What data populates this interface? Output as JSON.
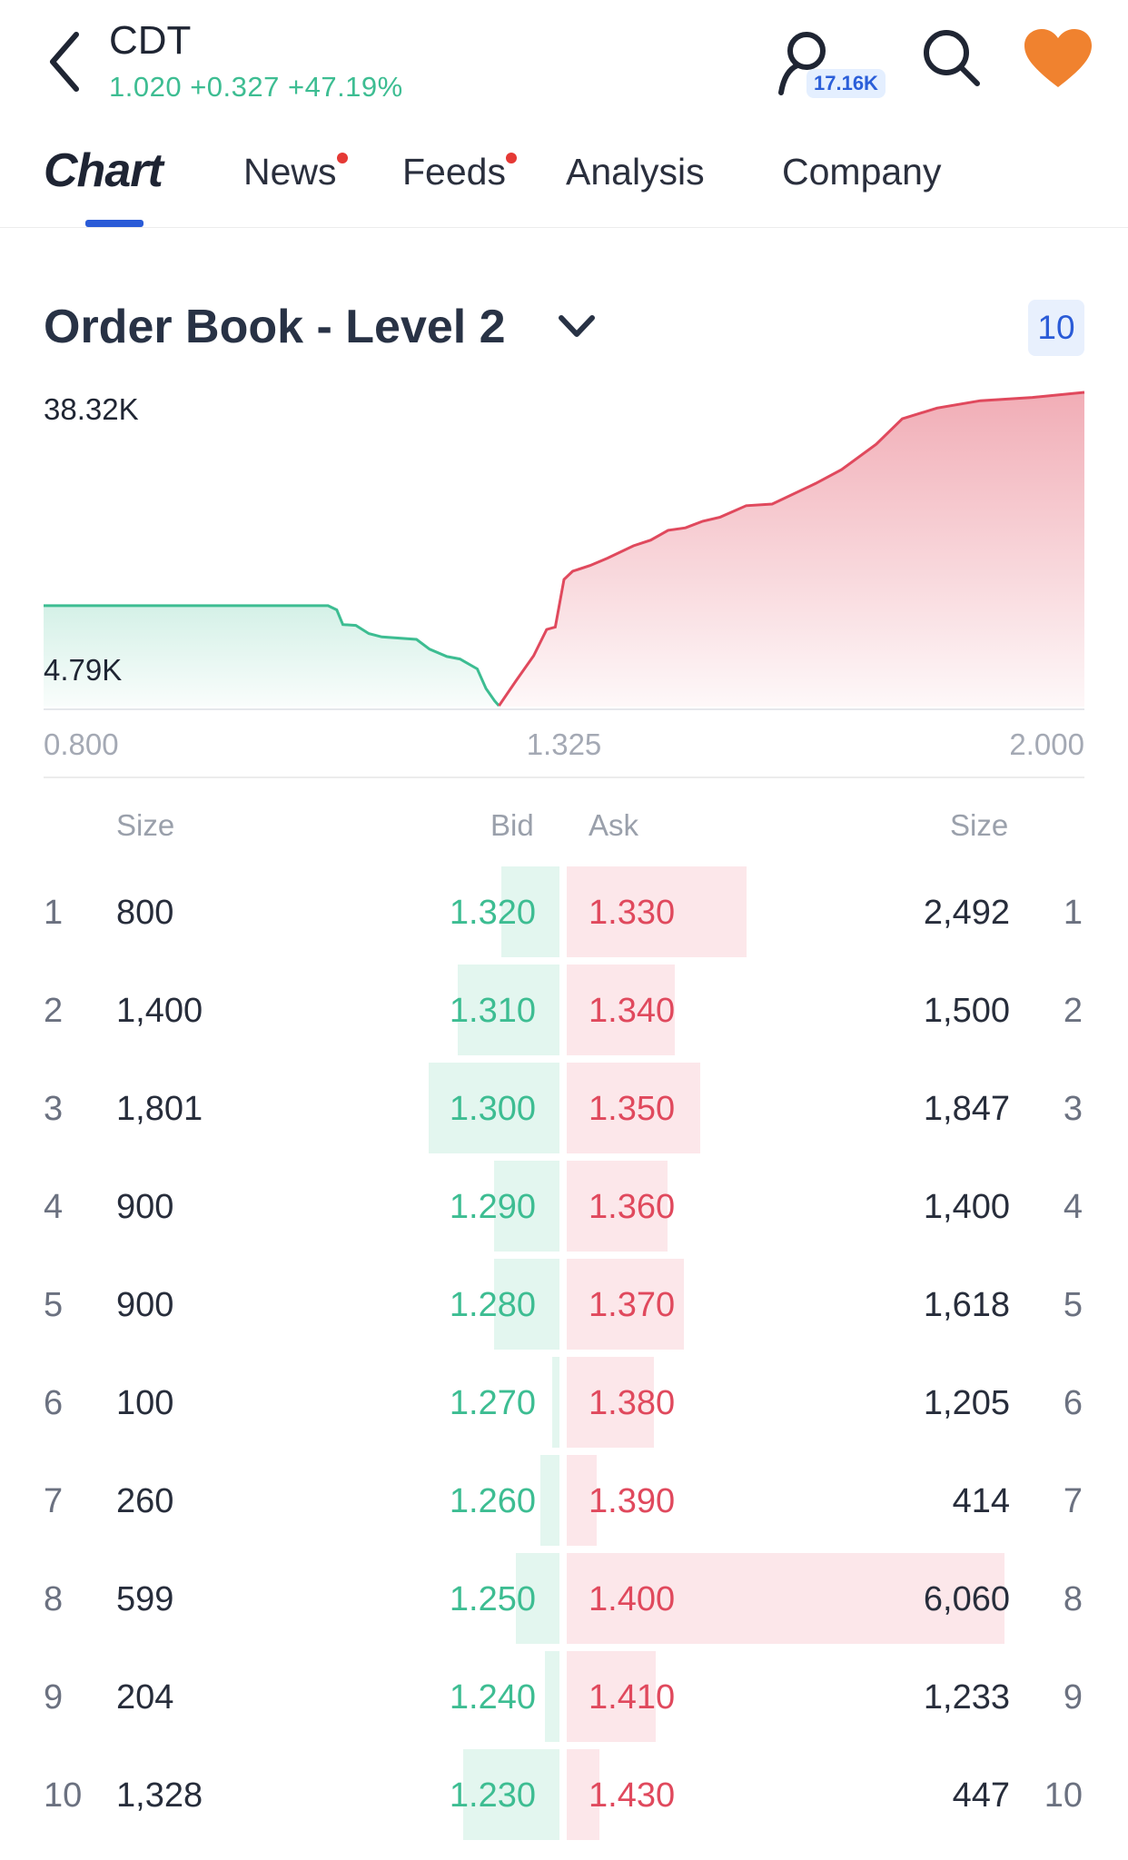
{
  "header": {
    "ticker": "CDT",
    "quote": "1.020 +0.327 +47.19%",
    "watchers": "17.16K",
    "colors": {
      "up": "#3dbd92",
      "down": "#e0495d",
      "accent": "#2a5bd7",
      "favorite": "#f0822f"
    }
  },
  "tabs": [
    {
      "label": "Chart",
      "active": true,
      "dot": false
    },
    {
      "label": "News",
      "active": false,
      "dot": true
    },
    {
      "label": "Feeds",
      "active": false,
      "dot": true
    },
    {
      "label": "Analysis",
      "active": false,
      "dot": false
    },
    {
      "label": "Company",
      "active": false,
      "dot": false
    }
  ],
  "order_book": {
    "title": "Order Book - Level 2",
    "depth": "10",
    "columns": {
      "size": "Size",
      "bid": "Bid",
      "ask": "Ask",
      "size2": "Size"
    },
    "rows": [
      {
        "n": "1",
        "bid_size": "800",
        "bid": "1.320",
        "ask": "1.330",
        "ask_size": "2,492",
        "bid_qty": 800,
        "ask_qty": 2492
      },
      {
        "n": "2",
        "bid_size": "1,400",
        "bid": "1.310",
        "ask": "1.340",
        "ask_size": "1,500",
        "bid_qty": 1400,
        "ask_qty": 1500
      },
      {
        "n": "3",
        "bid_size": "1,801",
        "bid": "1.300",
        "ask": "1.350",
        "ask_size": "1,847",
        "bid_qty": 1801,
        "ask_qty": 1847
      },
      {
        "n": "4",
        "bid_size": "900",
        "bid": "1.290",
        "ask": "1.360",
        "ask_size": "1,400",
        "bid_qty": 900,
        "ask_qty": 1400
      },
      {
        "n": "5",
        "bid_size": "900",
        "bid": "1.280",
        "ask": "1.370",
        "ask_size": "1,618",
        "bid_qty": 900,
        "ask_qty": 1618
      },
      {
        "n": "6",
        "bid_size": "100",
        "bid": "1.270",
        "ask": "1.380",
        "ask_size": "1,205",
        "bid_qty": 100,
        "ask_qty": 1205
      },
      {
        "n": "7",
        "bid_size": "260",
        "bid": "1.260",
        "ask": "1.390",
        "ask_size": "414",
        "bid_qty": 260,
        "ask_qty": 414
      },
      {
        "n": "8",
        "bid_size": "599",
        "bid": "1.250",
        "ask": "1.400",
        "ask_size": "6,060",
        "bid_qty": 599,
        "ask_qty": 6060
      },
      {
        "n": "9",
        "bid_size": "204",
        "bid": "1.240",
        "ask": "1.410",
        "ask_size": "1,233",
        "bid_qty": 204,
        "ask_qty": 1233
      },
      {
        "n": "10",
        "bid_size": "1,328",
        "bid": "1.230",
        "ask": "1.430",
        "ask_size": "447",
        "bid_qty": 1328,
        "ask_qty": 447
      }
    ]
  },
  "chart_data": {
    "type": "area",
    "y_max_label": "38.32K",
    "y_mid_label": "4.79K",
    "x_tick_labels": [
      "0.800",
      "1.325",
      "2.000"
    ],
    "xlim": [
      0.8,
      2.0
    ],
    "ylim": [
      0,
      38320
    ],
    "series": [
      {
        "side": "bid",
        "color": "#3dbd92",
        "x": [
          0.8,
          1.128,
          1.138,
          1.145,
          1.16,
          1.175,
          1.19,
          1.23,
          1.245,
          1.265,
          1.28,
          1.3,
          1.31,
          1.32,
          1.325
        ],
        "y": [
          12300,
          12300,
          11800,
          10000,
          9900,
          8900,
          8500,
          8200,
          7000,
          6100,
          5800,
          4600,
          2200,
          700,
          100
        ]
      },
      {
        "side": "ask",
        "color": "#e0495d",
        "x": [
          1.325,
          1.345,
          1.365,
          1.38,
          1.39,
          1.4,
          1.41,
          1.43,
          1.45,
          1.48,
          1.5,
          1.52,
          1.54,
          1.56,
          1.58,
          1.61,
          1.64,
          1.69,
          1.72,
          1.76,
          1.79,
          1.83,
          1.88,
          1.94,
          2.0
        ],
        "y": [
          100,
          3200,
          6200,
          9400,
          9700,
          15500,
          16500,
          17200,
          18100,
          19600,
          20300,
          21500,
          21800,
          22600,
          23100,
          24500,
          24700,
          27200,
          28900,
          32000,
          35100,
          36400,
          37300,
          37700,
          38320
        ]
      }
    ]
  }
}
